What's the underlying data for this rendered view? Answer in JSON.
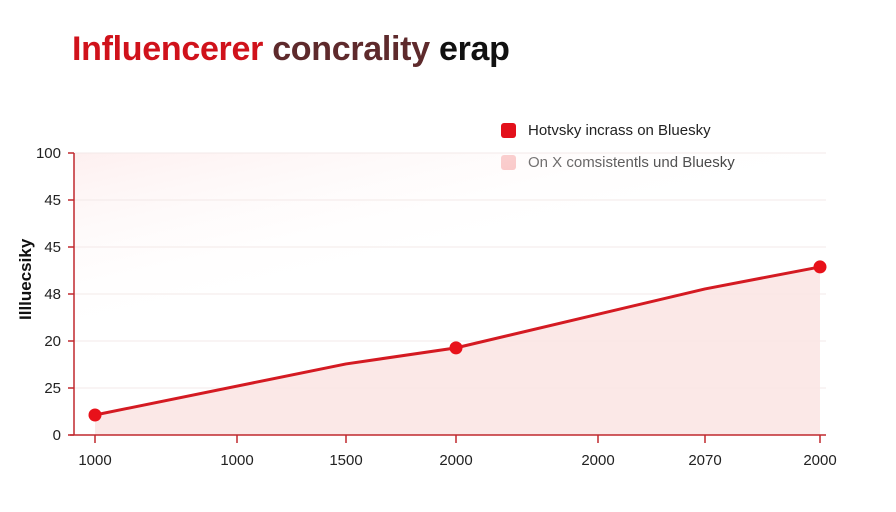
{
  "chart_data": {
    "type": "area",
    "title_parts": [
      "Influencerer",
      "concrality",
      "erap"
    ],
    "title": "Influencerer concrality erap",
    "xlabel": "",
    "ylabel": "Illluecsiky",
    "x_categories": [
      "1000",
      "1000",
      "1500",
      "2000",
      "2000",
      "2070",
      "2000"
    ],
    "y_tick_labels": [
      "0",
      "25",
      "20",
      "48",
      "45",
      "45",
      "100"
    ],
    "ylim": [
      0,
      100
    ],
    "grid": true,
    "legend_position": "top-right",
    "legend": [
      {
        "label": "Hotvsky incrass on Bluesky",
        "color": "#e3101b"
      },
      {
        "label": "On X comsistentls und Bluesky",
        "color": "#f7b0b0"
      }
    ],
    "series": [
      {
        "name": "Hotvsky incrass on Bluesky",
        "color": "#d41a22",
        "fill": "#fbe6e4",
        "points": [
          {
            "x_index": 0,
            "value": 7.1,
            "marker": true
          },
          {
            "x_index": 2,
            "value": 25.2,
            "marker": false
          },
          {
            "x_index": 3,
            "value": 30.9,
            "marker": true
          },
          {
            "x_index": 5,
            "value": 51.8,
            "marker": false
          },
          {
            "x_index": 6,
            "value": 59.6,
            "marker": true
          }
        ]
      }
    ],
    "colors": {
      "axis": "#c0282e",
      "marker": "#e8111a",
      "grid": "#f3e9e8"
    }
  }
}
